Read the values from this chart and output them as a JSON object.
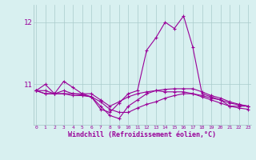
{
  "xlabel": "Windchill (Refroidissement éolien,°C)",
  "x_hours": [
    0,
    1,
    2,
    3,
    4,
    5,
    6,
    7,
    8,
    9,
    10,
    11,
    12,
    13,
    14,
    15,
    16,
    17,
    18,
    19,
    20,
    21,
    22,
    23
  ],
  "line1": [
    10.9,
    11.0,
    10.85,
    11.05,
    10.95,
    10.85,
    10.8,
    10.6,
    10.55,
    10.7,
    10.85,
    10.9,
    11.55,
    11.75,
    12.0,
    11.9,
    12.1,
    11.6,
    10.85,
    10.8,
    10.75,
    10.65,
    10.65,
    10.65
  ],
  "line2": [
    10.9,
    10.85,
    10.85,
    10.85,
    10.85,
    10.85,
    10.85,
    10.75,
    10.65,
    10.72,
    10.8,
    10.85,
    10.88,
    10.9,
    10.92,
    10.93,
    10.93,
    10.93,
    10.88,
    10.82,
    10.78,
    10.72,
    10.68,
    10.65
  ],
  "line3": [
    10.9,
    10.85,
    10.85,
    10.85,
    10.82,
    10.82,
    10.8,
    10.72,
    10.6,
    10.55,
    10.55,
    10.62,
    10.68,
    10.72,
    10.78,
    10.82,
    10.85,
    10.85,
    10.82,
    10.78,
    10.75,
    10.7,
    10.67,
    10.65
  ],
  "line4": [
    10.9,
    10.9,
    10.85,
    10.9,
    10.85,
    10.83,
    10.8,
    10.65,
    10.5,
    10.45,
    10.65,
    10.75,
    10.85,
    10.9,
    10.88,
    10.88,
    10.88,
    10.85,
    10.8,
    10.75,
    10.7,
    10.65,
    10.62,
    10.6
  ],
  "bg_color": "#d8f0f0",
  "line_color": "#990099",
  "grid_color": "#aacccc",
  "ylim_min": 10.35,
  "ylim_max": 12.28,
  "yticks": [
    11,
    12
  ],
  "xlim_min": -0.3,
  "xlim_max": 23.3,
  "marker": "+"
}
